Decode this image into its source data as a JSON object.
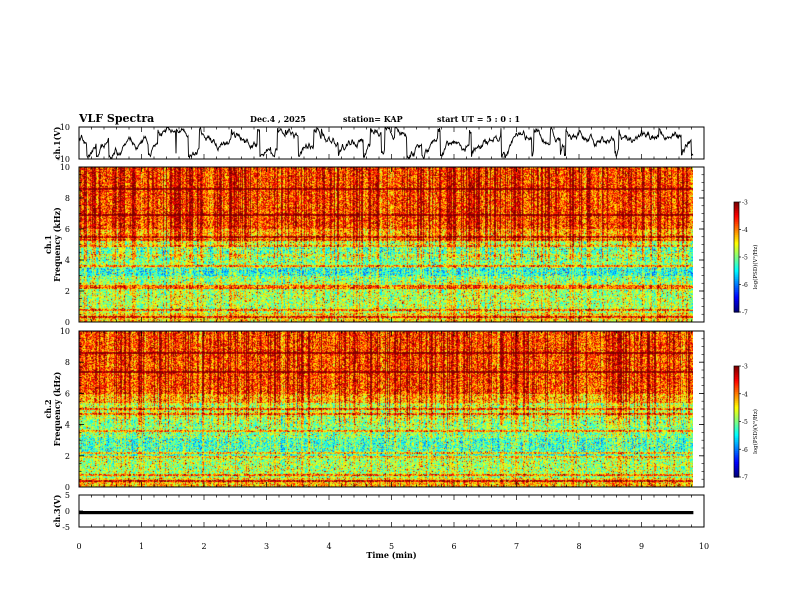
{
  "header": {
    "title": "VLF Spectra",
    "date": "Dec.4 , 2025",
    "station": "station= KAP",
    "start": "start UT = 5 : 0 : 1"
  },
  "chart_data": [
    {
      "id": "ch1-waveform",
      "type": "line",
      "ylabel": "ch.1(V)",
      "ylim": [
        -10,
        10
      ],
      "yticks": [
        "10",
        "-10"
      ],
      "xlim": [
        0,
        10
      ],
      "signal_extent_min": [
        0,
        9.83
      ]
    },
    {
      "id": "ch1-spectrogram",
      "type": "heatmap",
      "ylabel": "Frequency (kHz)",
      "ylabel_ch": "ch.1",
      "ylim": [
        0,
        10
      ],
      "yticks": [
        "0",
        "2",
        "4",
        "6",
        "8",
        "10"
      ],
      "xlim": [
        0,
        10
      ],
      "colorbar": {
        "label": "log(PSD)(V²/Hz)",
        "range": [
          -7,
          -3
        ],
        "ticks": [
          "-3",
          "-4",
          "-5",
          "-6",
          "-7"
        ]
      }
    },
    {
      "id": "ch2-spectrogram",
      "type": "heatmap",
      "ylabel": "Frequency (kHz)",
      "ylabel_ch": "ch.2",
      "ylim": [
        0,
        10
      ],
      "yticks": [
        "0",
        "2",
        "4",
        "6",
        "8",
        "10"
      ],
      "xlim": [
        0,
        10
      ],
      "colorbar": {
        "label": "log(PSD)(V²/Hz)",
        "range": [
          -7,
          -3
        ],
        "ticks": [
          "-3",
          "-4",
          "-5",
          "-6",
          "-7"
        ]
      }
    },
    {
      "id": "ch3-waveform",
      "type": "line",
      "ylabel": "ch.3(V)",
      "ylim": [
        -5,
        5
      ],
      "yticks": [
        "5",
        "0",
        "-5"
      ],
      "level_band_v": [
        -1,
        0
      ],
      "xlim": [
        0,
        10
      ],
      "xlabel": "Time (min)",
      "xticks": [
        "0",
        "1",
        "2",
        "3",
        "4",
        "5",
        "6",
        "7",
        "8",
        "9",
        "10"
      ]
    }
  ]
}
